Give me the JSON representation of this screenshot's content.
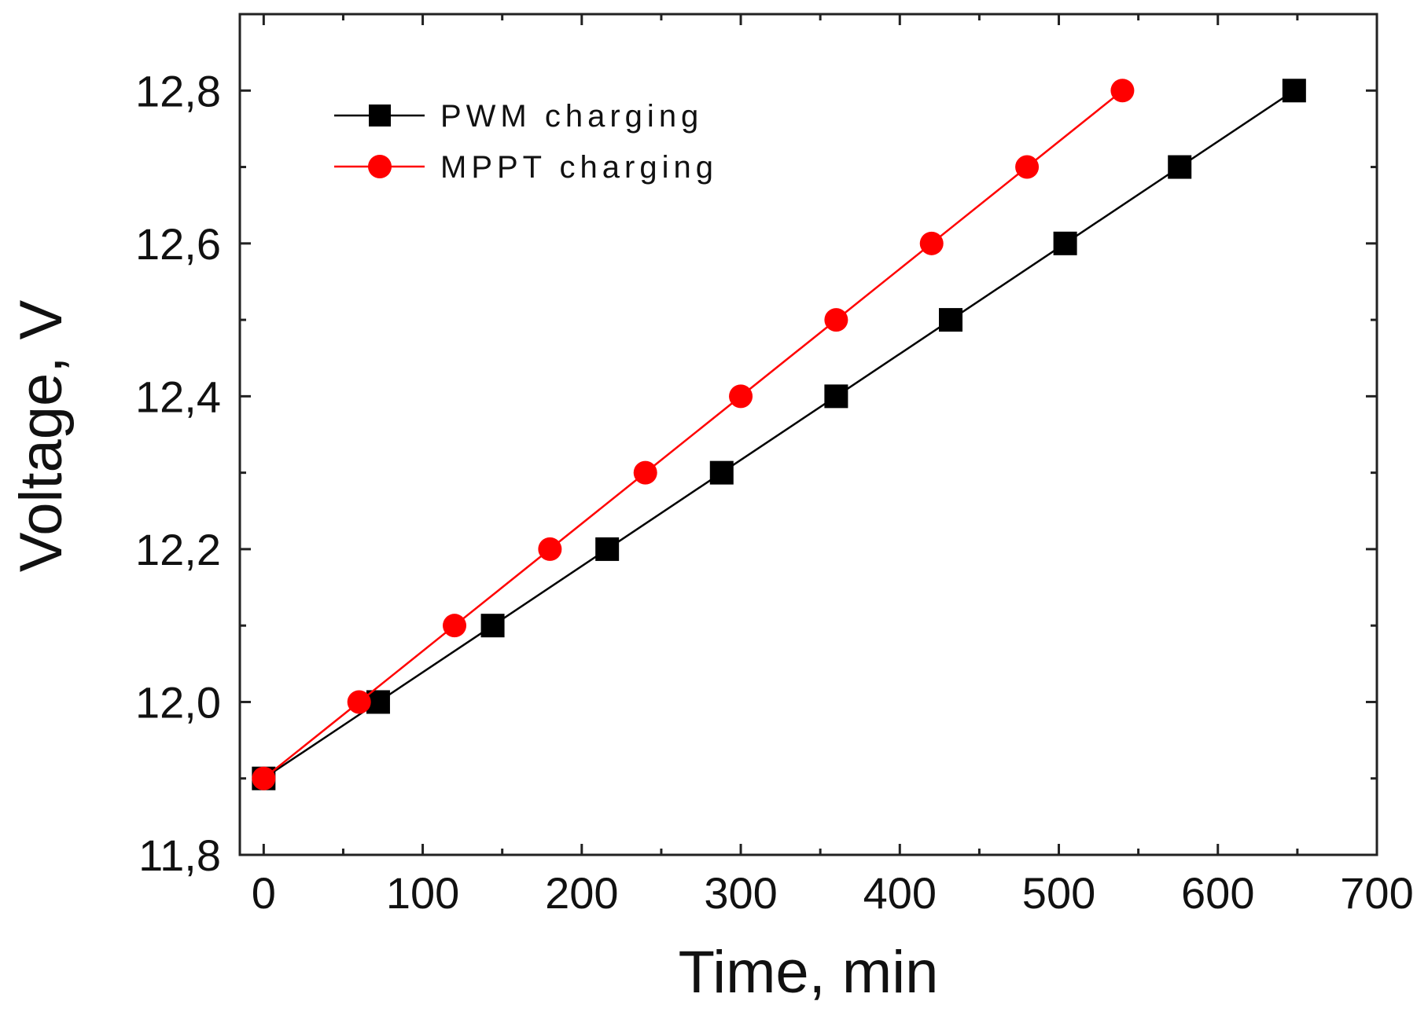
{
  "chart_data": {
    "type": "line",
    "title": "",
    "xlabel": "Time, min",
    "ylabel": "Voltage, V",
    "xlim": [
      -15,
      700
    ],
    "ylim": [
      11.8,
      12.9
    ],
    "xticks": [
      0,
      100,
      200,
      300,
      400,
      500,
      600,
      700
    ],
    "xtick_labels": [
      "0",
      "100",
      "200",
      "300",
      "400",
      "500",
      "600",
      "700"
    ],
    "yticks": [
      11.8,
      12.0,
      12.2,
      12.4,
      12.6,
      12.8
    ],
    "ytick_labels": [
      "11,8",
      "12,0",
      "12,2",
      "12,4",
      "12,6",
      "12,8"
    ],
    "grid": false,
    "legend_position": "top-left",
    "series": [
      {
        "name": "PWM charging",
        "color": "#000000",
        "marker": "square",
        "x": [
          0,
          72,
          144,
          216,
          288,
          360,
          432,
          504,
          576,
          648
        ],
        "y": [
          11.9,
          12.0,
          12.1,
          12.2,
          12.3,
          12.4,
          12.5,
          12.6,
          12.7,
          12.8
        ]
      },
      {
        "name": "MPPT charging",
        "color": "#ff0000",
        "marker": "circle",
        "x": [
          0,
          60,
          120,
          180,
          240,
          300,
          360,
          420,
          480,
          540
        ],
        "y": [
          11.9,
          12.0,
          12.1,
          12.2,
          12.3,
          12.4,
          12.5,
          12.6,
          12.7,
          12.8
        ]
      }
    ]
  }
}
